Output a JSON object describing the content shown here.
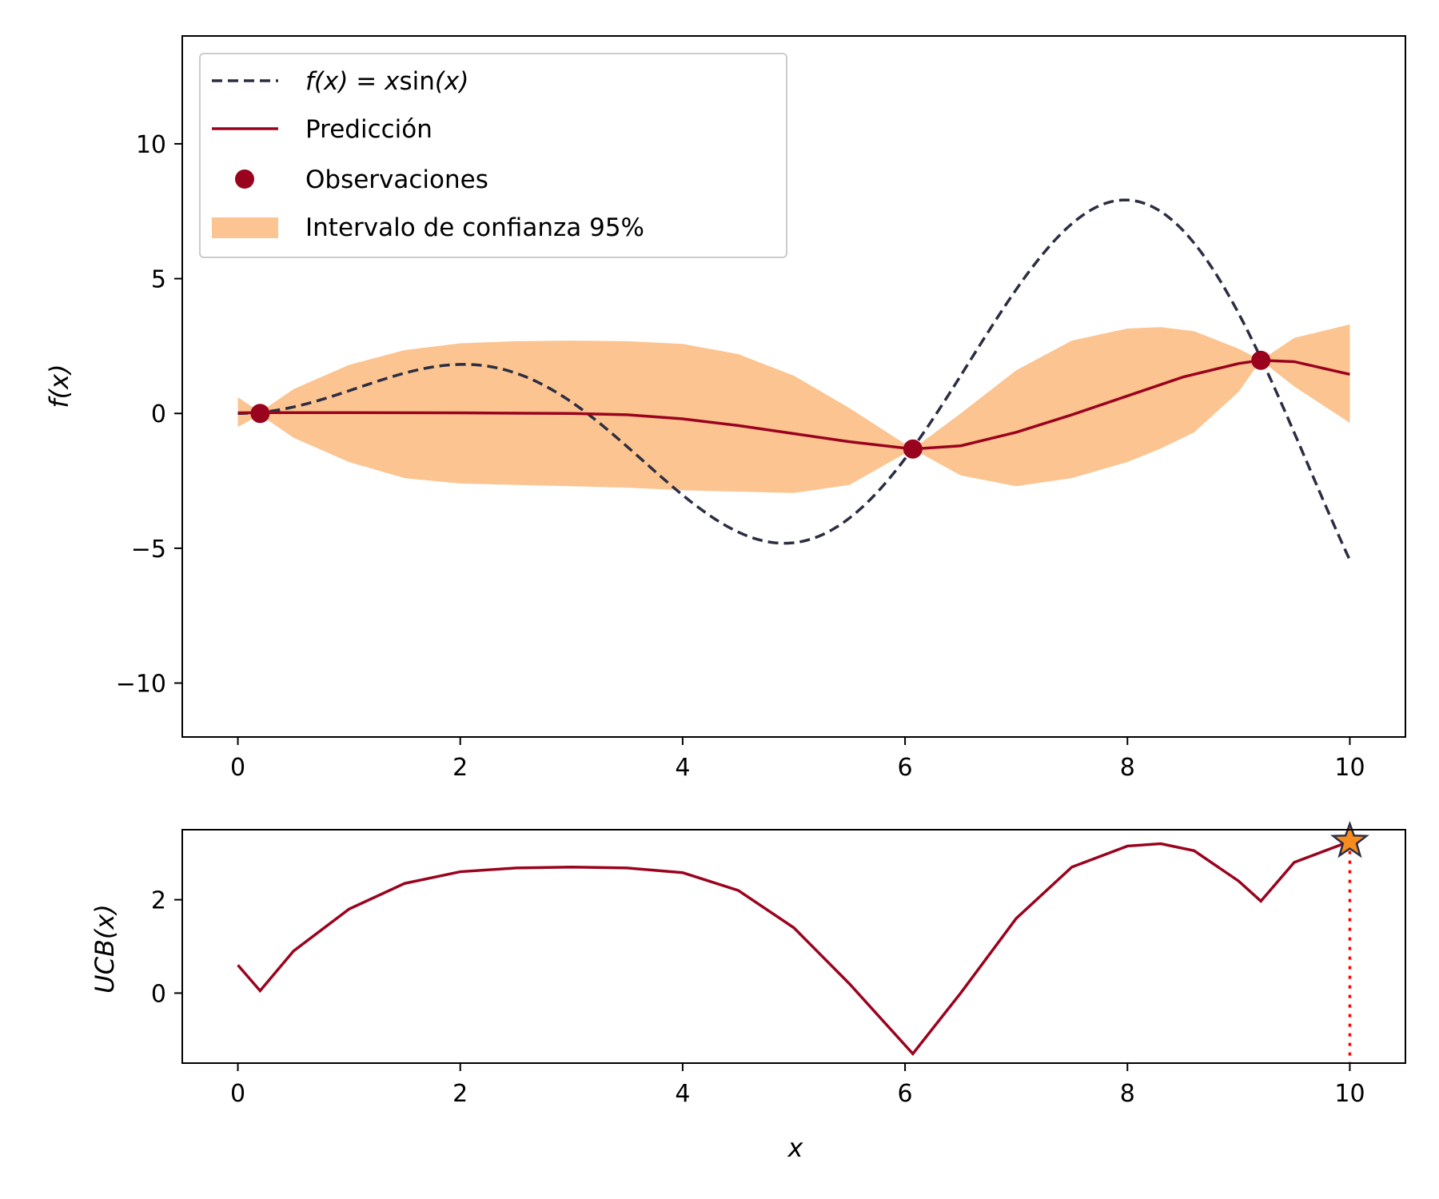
{
  "chart_data": [
    {
      "type": "line",
      "panel": "top",
      "xlabel": "",
      "ylabel": "f(x)",
      "xlim": [
        -0.5,
        10.5
      ],
      "ylim": [
        -12,
        14
      ],
      "xticks": [
        0,
        2,
        4,
        6,
        8,
        10
      ],
      "yticks": [
        -10,
        -5,
        0,
        5,
        10
      ],
      "xtick_labels": [
        "0",
        "2",
        "4",
        "6",
        "8",
        "10"
      ],
      "ytick_labels": [
        "−10",
        "−5",
        "0",
        "5",
        "10"
      ],
      "grid": false,
      "legend_placement": "top-left",
      "series": [
        {
          "name": "f(x) = x sin(x)",
          "legend_prefix": "f(x) = x",
          "legend_sin": "sin",
          "legend_suffix": "(x)",
          "style": "dashed",
          "color": "#2b2d42",
          "x_range": [
            0,
            10
          ],
          "function": "x*sin(x)"
        },
        {
          "name": "Predicción",
          "style": "solid",
          "color": "#9a031e",
          "x": [
            0,
            0.2,
            1,
            2,
            3,
            3.5,
            4,
            4.5,
            5,
            5.5,
            6.07,
            6.5,
            7,
            7.5,
            8,
            8.5,
            9,
            9.2,
            9.5,
            10
          ],
          "y": [
            0.02,
            0.03,
            0.03,
            0.02,
            0.0,
            -0.05,
            -0.2,
            -0.45,
            -0.75,
            -1.05,
            -1.32,
            -1.2,
            -0.7,
            -0.05,
            0.65,
            1.35,
            1.85,
            1.97,
            1.92,
            1.45
          ]
        },
        {
          "name": "Observaciones",
          "type": "scatter",
          "color": "#9a031e",
          "x": [
            0.2,
            6.07,
            9.2
          ],
          "y": [
            0.0,
            -1.32,
            1.97
          ]
        },
        {
          "name": "Intervalo de confianza 95%",
          "type": "band",
          "color": "#fbc490",
          "x": [
            0,
            0.2,
            0.5,
            1,
            1.5,
            2,
            2.5,
            3,
            3.5,
            4,
            4.5,
            5,
            5.5,
            6.07,
            6.5,
            7,
            7.5,
            8,
            8.3,
            8.6,
            9,
            9.2,
            9.5,
            10
          ],
          "upper": [
            0.6,
            0.05,
            0.9,
            1.8,
            2.35,
            2.6,
            2.68,
            2.7,
            2.68,
            2.58,
            2.2,
            1.4,
            0.2,
            -1.32,
            0.0,
            1.6,
            2.7,
            3.15,
            3.2,
            3.05,
            2.4,
            1.97,
            2.8,
            3.3
          ],
          "lower": [
            -0.5,
            -0.05,
            -0.9,
            -1.8,
            -2.4,
            -2.6,
            -2.65,
            -2.7,
            -2.75,
            -2.85,
            -2.9,
            -2.95,
            -2.65,
            -1.32,
            -2.3,
            -2.7,
            -2.4,
            -1.8,
            -1.3,
            -0.7,
            0.8,
            1.97,
            1.0,
            -0.35
          ]
        }
      ]
    },
    {
      "type": "line",
      "panel": "bottom",
      "xlabel": "x",
      "ylabel": "UCB(x)",
      "xlim": [
        -0.5,
        10.5
      ],
      "ylim": [
        -1.5,
        3.5
      ],
      "xticks": [
        0,
        2,
        4,
        6,
        8,
        10
      ],
      "yticks": [
        0,
        2
      ],
      "xtick_labels": [
        "0",
        "2",
        "4",
        "6",
        "8",
        "10"
      ],
      "ytick_labels": [
        "0",
        "2"
      ],
      "grid": false,
      "series": [
        {
          "name": "",
          "style": "solid",
          "color": "#9a031e",
          "x": [
            0,
            0.2,
            0.5,
            1,
            1.5,
            2,
            2.5,
            3,
            3.5,
            4,
            4.5,
            5,
            5.5,
            6.07,
            6.5,
            7,
            7.5,
            8,
            8.3,
            8.6,
            9,
            9.2,
            9.5,
            10
          ],
          "y": [
            0.6,
            0.05,
            0.9,
            1.8,
            2.35,
            2.6,
            2.68,
            2.7,
            2.68,
            2.58,
            2.2,
            1.4,
            0.2,
            -1.3,
            0.0,
            1.6,
            2.7,
            3.15,
            3.2,
            3.05,
            2.4,
            1.97,
            2.8,
            3.25
          ]
        }
      ],
      "max_marker": {
        "x": 10,
        "y": 3.25,
        "shape": "star",
        "fill": "#f78c1e",
        "edge": "#2b2d42",
        "guide_color": "#ff0000",
        "guide_style": "dotted"
      }
    }
  ]
}
